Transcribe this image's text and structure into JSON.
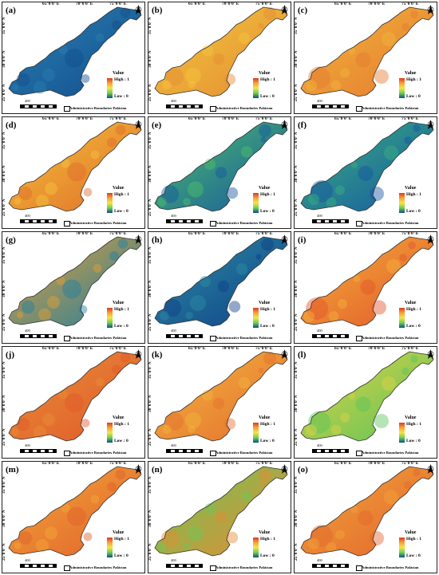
{
  "legend": {
    "title": "Value",
    "high": "High : 1",
    "low": "Low : 0"
  },
  "admin_label": "Administrative Boundaries Pakistan",
  "scale_label": "400",
  "lon_ticks": [
    "65°0'0\"E",
    "70°0'0\"E",
    "75°0'0\"E"
  ],
  "lat_ticks": [
    "35°0'0\"N",
    "30°0'0\"N",
    "25°0'0\"N"
  ],
  "colors": {
    "high": "#e0381b",
    "mid_high": "#f3a43a",
    "mid": "#f6e34a",
    "mid_low": "#6fcf4e",
    "low": "#0a4e8c",
    "border": "#333333"
  },
  "panels": [
    {
      "label": "(a)",
      "base": "#124e8e",
      "accent": "#2b7fb0"
    },
    {
      "label": "(b)",
      "base": "#e48c33",
      "accent": "#f3c73e"
    },
    {
      "label": "(c)",
      "base": "#e57a30",
      "accent": "#f2b53c"
    },
    {
      "label": "(d)",
      "base": "#e06b2a",
      "accent": "#f4c53b"
    },
    {
      "label": "(e)",
      "base": "#1656a0",
      "accent": "#4fc169"
    },
    {
      "label": "(f)",
      "base": "#1655a2",
      "accent": "#3bb27f"
    },
    {
      "label": "(g)",
      "base": "#1f7fa3",
      "accent": "#e8a033"
    },
    {
      "label": "(h)",
      "base": "#0f3f86",
      "accent": "#2d8fa5"
    },
    {
      "label": "(i)",
      "base": "#e3552a",
      "accent": "#f3b33c"
    },
    {
      "label": "(j)",
      "base": "#e0582a",
      "accent": "#e88f37"
    },
    {
      "label": "(k)",
      "base": "#e46e2e",
      "accent": "#f3b63f"
    },
    {
      "label": "(l)",
      "base": "#5cc35a",
      "accent": "#e0d345"
    },
    {
      "label": "(m)",
      "base": "#e0602b",
      "accent": "#f3a83a"
    },
    {
      "label": "(n)",
      "base": "#e58a34",
      "accent": "#6cc856"
    },
    {
      "label": "(o)",
      "base": "#e3652c",
      "accent": "#f1a53a"
    }
  ]
}
